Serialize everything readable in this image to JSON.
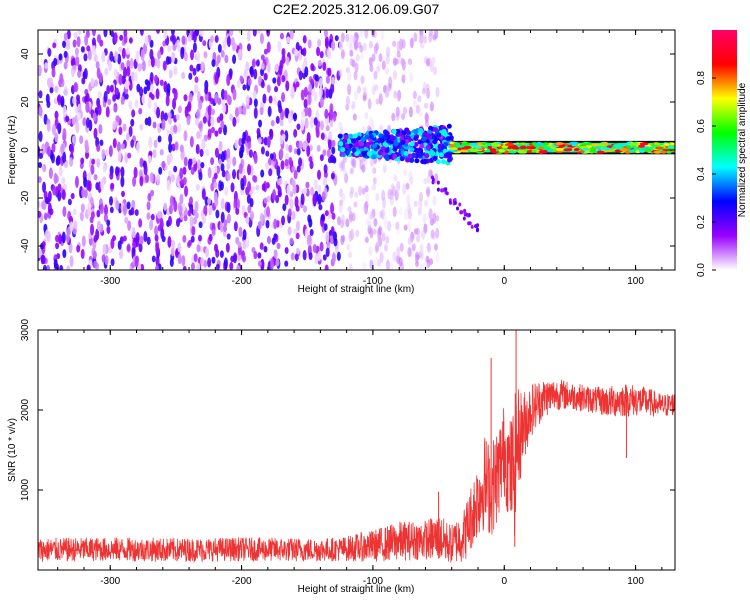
{
  "figure": {
    "title": "C2E2.2025.312.06.09.G07"
  },
  "chart_data": [
    {
      "type": "heatmap",
      "xlabel": "Height of straight line (km)",
      "ylabel": "Frequency (Hz)",
      "xlim": [
        -355,
        130
      ],
      "ylim": [
        -50,
        50
      ],
      "x_ticks": [
        "-300",
        "-200",
        "-100",
        "0",
        "100"
      ],
      "y_ticks": [
        "-40",
        "-20",
        "0",
        "20",
        "40"
      ],
      "colorbar": {
        "label": "Normalized spectral amplitude",
        "range": [
          0.0,
          1.0
        ],
        "ticks": [
          "0.0",
          "0.2",
          "0.4",
          "0.6",
          "0.8"
        ],
        "colors": [
          "#ffffff",
          "#9900ff",
          "#0000ff",
          "#00ffff",
          "#00ff00",
          "#ffff00",
          "#ff0000",
          "#ff0066"
        ]
      },
      "regions": [
        {
          "name": "noise",
          "x": [
            -355,
            -125
          ],
          "y": [
            -50,
            50
          ],
          "amplitude": 0.15
        },
        {
          "name": "sparse-noise",
          "x": [
            -125,
            -50
          ],
          "y": [
            -50,
            50
          ],
          "amplitude": 0.05
        },
        {
          "name": "signal-band",
          "x": [
            -40,
            130
          ],
          "y": [
            -1,
            3
          ],
          "amplitude": 0.75
        },
        {
          "name": "scattered-signal",
          "x": [
            -125,
            -40
          ],
          "y": [
            -12,
            15
          ],
          "amplitude": 0.35
        }
      ]
    },
    {
      "type": "line",
      "xlabel": "Height of straight line (km)",
      "ylabel": "SNR (10 * v/v)",
      "xlim": [
        -355,
        130
      ],
      "ylim": [
        0,
        3000
      ],
      "x_ticks": [
        "-300",
        "-200",
        "-100",
        "0",
        "100"
      ],
      "y_ticks": [
        "1000",
        "2000",
        "3000"
      ],
      "color": "#ee3333",
      "envelope": {
        "x": [
          -355,
          -300,
          -250,
          -200,
          -150,
          -125,
          -100,
          -80,
          -60,
          -50,
          -40,
          -30,
          -20,
          -15,
          -10,
          -5,
          0,
          5,
          8,
          10,
          15,
          20,
          30,
          40,
          50,
          60,
          70,
          80,
          90,
          100,
          110,
          120,
          130
        ],
        "mean": [
          250,
          260,
          250,
          260,
          250,
          260,
          300,
          360,
          380,
          400,
          320,
          450,
          900,
          1100,
          1000,
          1200,
          1500,
          1200,
          1300,
          1600,
          1800,
          2000,
          2150,
          2200,
          2180,
          2150,
          2120,
          2100,
          2130,
          2120,
          2100,
          2050,
          2080
        ],
        "spread": [
          150,
          150,
          150,
          150,
          150,
          150,
          200,
          250,
          250,
          300,
          250,
          350,
          500,
          600,
          600,
          600,
          600,
          700,
          900,
          700,
          450,
          350,
          250,
          200,
          180,
          170,
          170,
          200,
          220,
          200,
          180,
          150,
          150
        ]
      },
      "spikes": [
        {
          "x": 9,
          "y": 3050
        },
        {
          "x": 8,
          "y": 290
        },
        {
          "x": -10,
          "y": 2650
        },
        {
          "x": 93,
          "y": 1400
        },
        {
          "x": -50,
          "y": 980
        }
      ]
    }
  ]
}
